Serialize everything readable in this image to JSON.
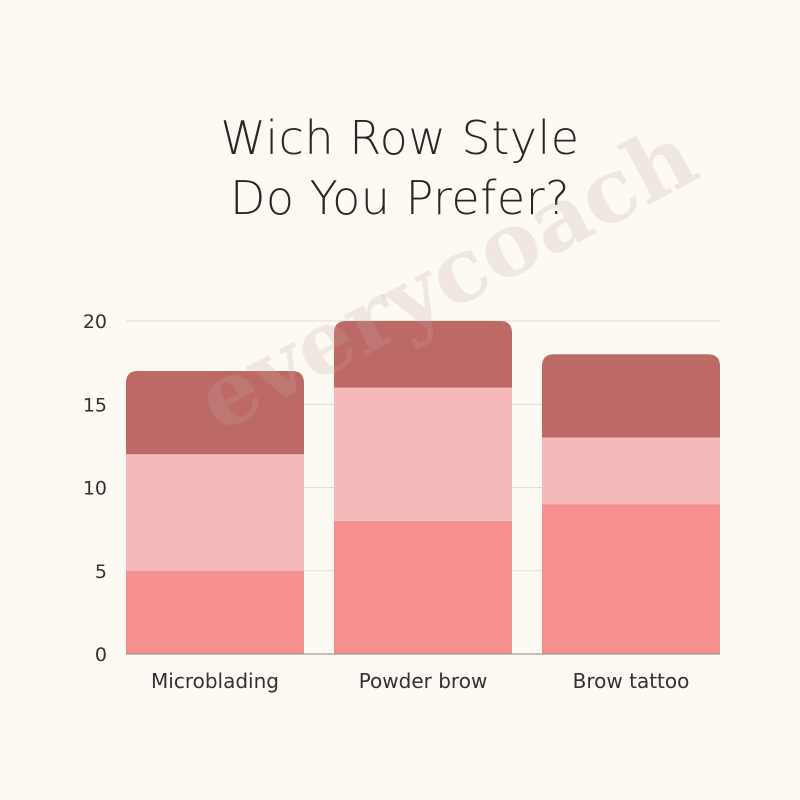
{
  "chart_data": {
    "type": "bar",
    "stacked": true,
    "title": "Wich Row Style",
    "subtitle": "Do You Prefer?",
    "categories": [
      "Microblading",
      "Powder brow",
      "Brow tattoo"
    ],
    "series": [
      {
        "values": [
          5,
          8,
          9
        ],
        "color": "#f58f90"
      },
      {
        "values": [
          7,
          8,
          4
        ],
        "color": "#f6b9b9"
      },
      {
        "values": [
          5,
          4,
          5
        ],
        "color": "#bd6a67"
      }
    ],
    "ylim": [
      0,
      20
    ],
    "yticks": [
      0,
      5,
      10,
      15,
      20
    ],
    "grid": true,
    "legend": "none",
    "xlabel": "",
    "ylabel": ""
  },
  "watermark": "everycoach"
}
